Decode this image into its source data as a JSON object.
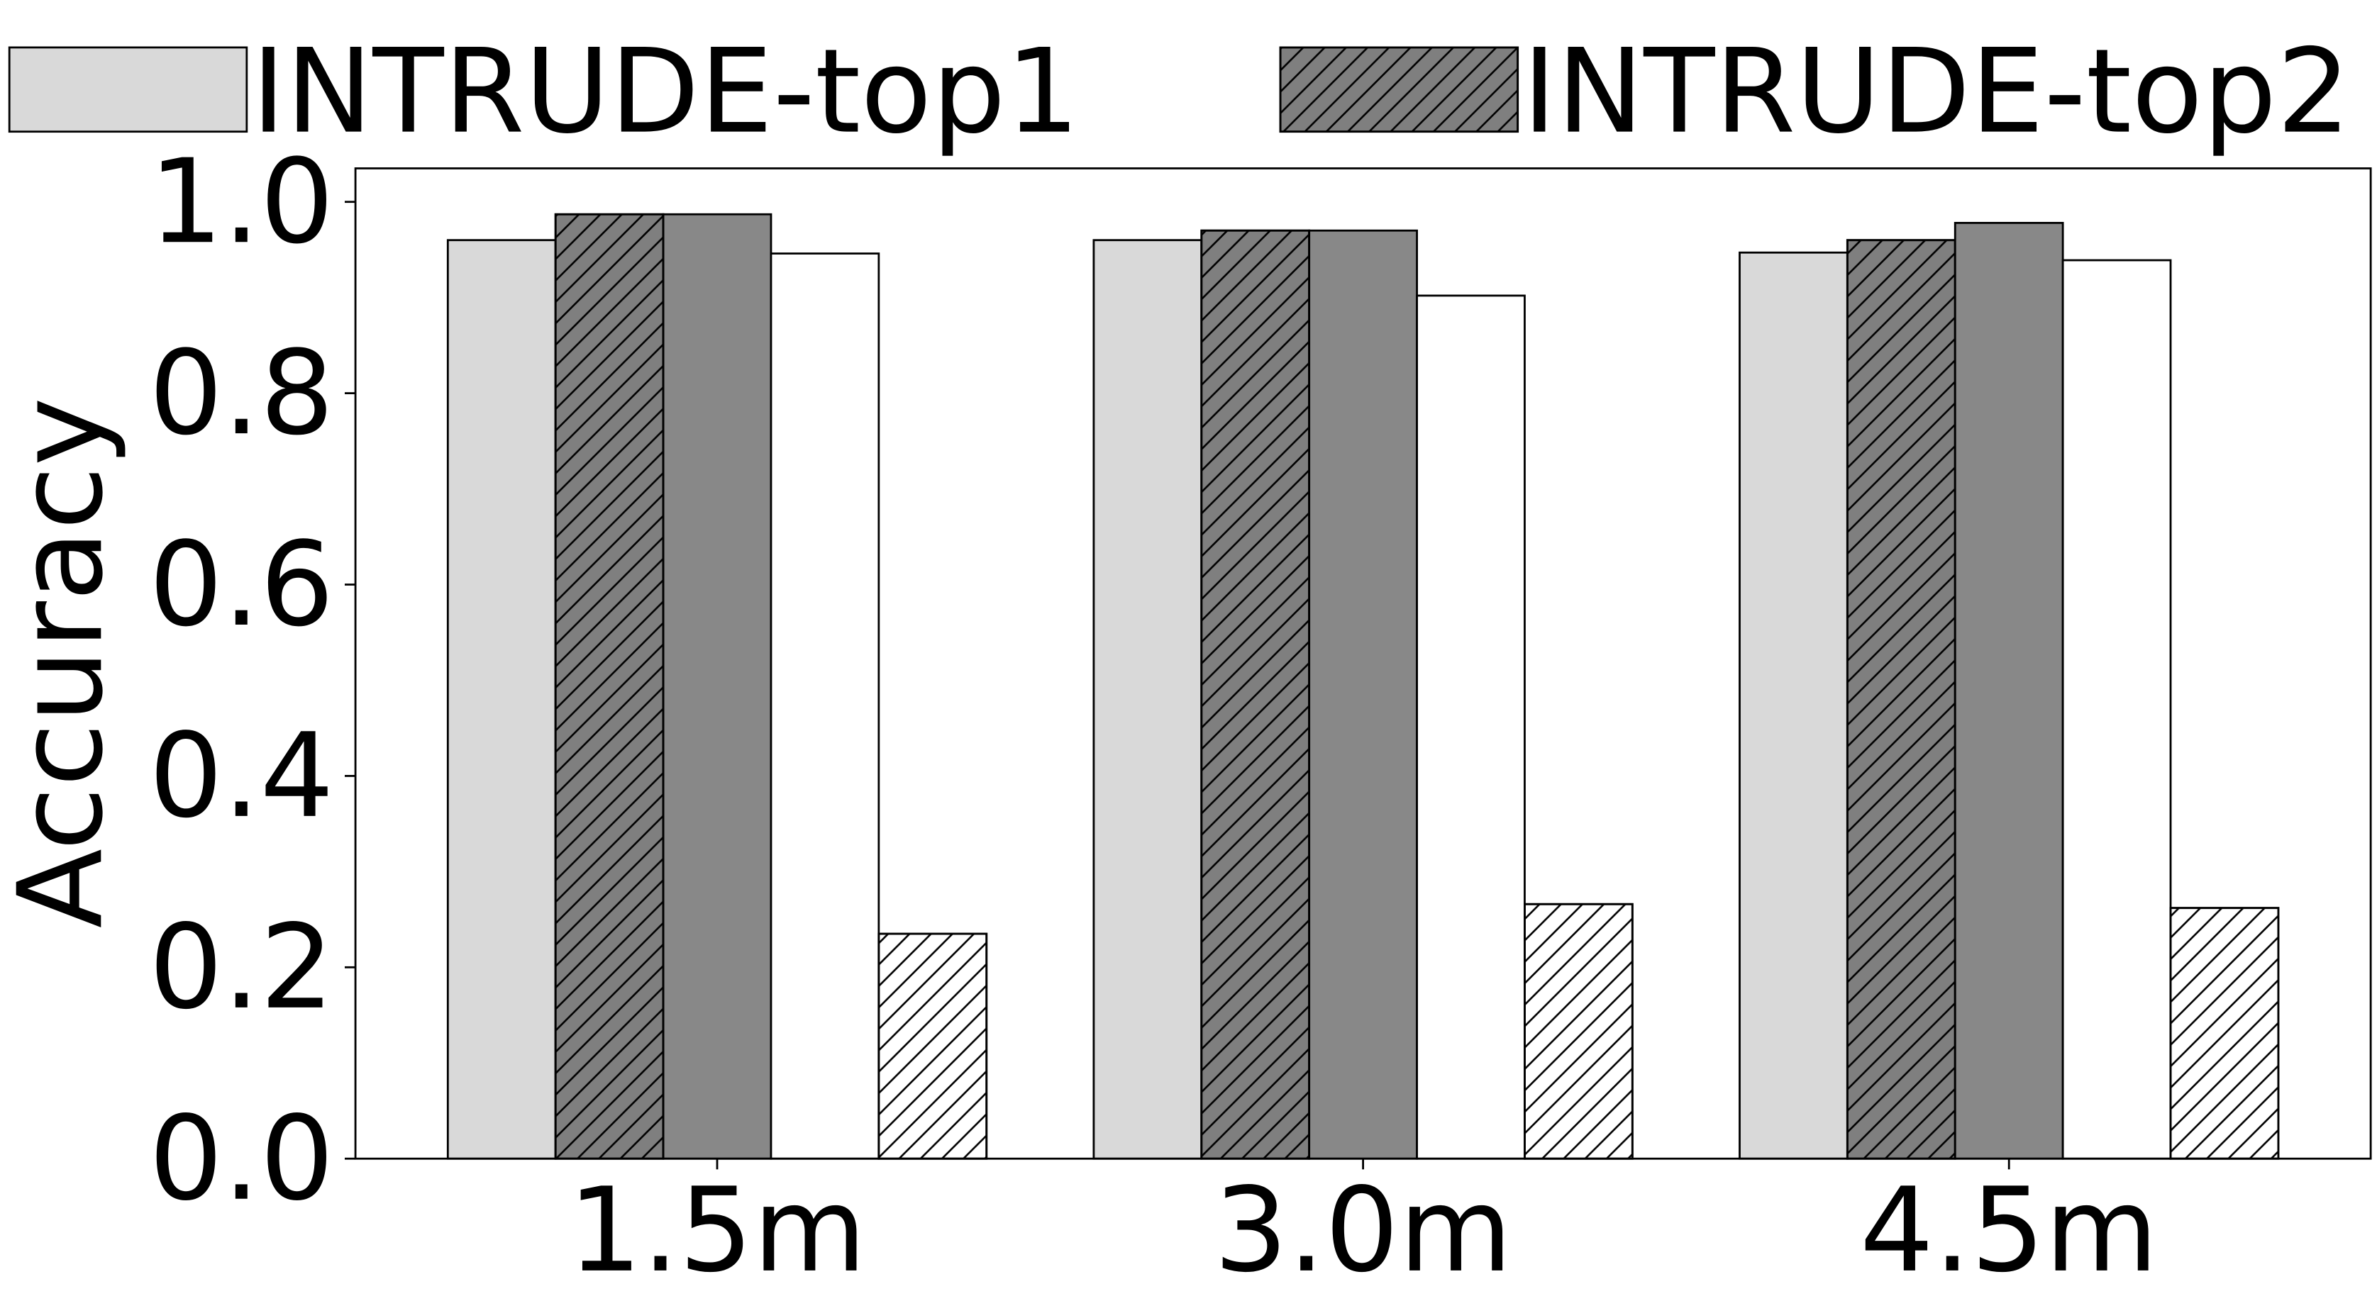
{
  "chart_data": {
    "type": "bar",
    "y_label": "Accuracy",
    "categories": [
      "1.5m",
      "3.0m",
      "4.5m"
    ],
    "series": [
      {
        "name": "INTRUDE-top1",
        "color": "#d9d9d9",
        "hatch": false,
        "values": [
          0.96,
          0.96,
          0.947
        ]
      },
      {
        "name": "INTRUDE-top2",
        "color": "#7f7f7f",
        "hatch": true,
        "values": [
          0.987,
          0.97,
          0.96
        ]
      },
      {
        "color": "#888888",
        "hatch": false,
        "values": [
          0.987,
          0.97,
          0.978
        ]
      },
      {
        "color": "#ffffff",
        "hatch": false,
        "values": [
          0.946,
          0.902,
          0.939
        ]
      },
      {
        "color": "#ffffff",
        "hatch": true,
        "values": [
          0.235,
          0.266,
          0.262
        ]
      }
    ],
    "ylim": [
      0,
      1.035
    ],
    "yticks": [
      {
        "value": 0,
        "label": "0.0"
      },
      0.2,
      0.4,
      0.6,
      0.8,
      {
        "value": 1,
        "label": "1.0"
      }
    ],
    "grid": false
  }
}
